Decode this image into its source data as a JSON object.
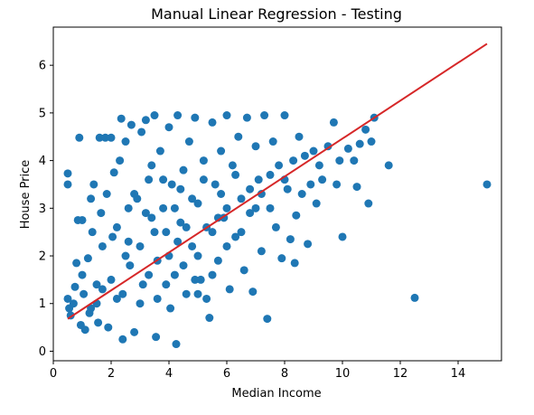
{
  "chart_data": {
    "type": "scatter",
    "title": "Manual Linear Regression - Testing",
    "xlabel": "Median Income",
    "ylabel": "House Price",
    "xlim": [
      0,
      15.5
    ],
    "ylim": [
      -0.2,
      6.8
    ],
    "xticks": [
      0,
      2,
      4,
      6,
      8,
      10,
      12,
      14
    ],
    "yticks": [
      0,
      1,
      2,
      3,
      4,
      5,
      6
    ],
    "grid": false,
    "series": [
      {
        "kind": "scatter",
        "color": "#1f77b4",
        "points": [
          [
            0.5,
            3.73
          ],
          [
            0.5,
            3.5
          ],
          [
            0.5,
            1.1
          ],
          [
            0.55,
            0.9
          ],
          [
            0.6,
            0.75
          ],
          [
            0.7,
            1.0
          ],
          [
            0.75,
            1.35
          ],
          [
            0.8,
            1.85
          ],
          [
            0.85,
            2.75
          ],
          [
            0.9,
            4.48
          ],
          [
            0.95,
            0.55
          ],
          [
            1.0,
            2.75
          ],
          [
            1.0,
            1.6
          ],
          [
            1.05,
            1.2
          ],
          [
            1.1,
            0.45
          ],
          [
            1.2,
            1.95
          ],
          [
            1.25,
            0.8
          ],
          [
            1.3,
            3.2
          ],
          [
            1.35,
            2.5
          ],
          [
            1.4,
            3.5
          ],
          [
            1.5,
            1.4
          ],
          [
            1.55,
            0.6
          ],
          [
            1.6,
            4.48
          ],
          [
            1.65,
            2.9
          ],
          [
            1.7,
            2.2
          ],
          [
            1.8,
            4.48
          ],
          [
            1.85,
            3.3
          ],
          [
            1.9,
            0.5
          ],
          [
            2.0,
            4.48
          ],
          [
            2.05,
            2.4
          ],
          [
            2.1,
            3.75
          ],
          [
            2.2,
            1.1
          ],
          [
            2.3,
            4.0
          ],
          [
            2.35,
            4.88
          ],
          [
            2.4,
            0.25
          ],
          [
            2.5,
            4.4
          ],
          [
            2.6,
            3.0
          ],
          [
            2.65,
            1.8
          ],
          [
            2.7,
            4.75
          ],
          [
            2.8,
            0.4
          ],
          [
            2.9,
            3.2
          ],
          [
            3.0,
            2.2
          ],
          [
            3.05,
            4.6
          ],
          [
            3.1,
            1.4
          ],
          [
            3.2,
            4.85
          ],
          [
            3.3,
            3.6
          ],
          [
            3.4,
            2.8
          ],
          [
            3.5,
            4.95
          ],
          [
            3.55,
            0.3
          ],
          [
            3.6,
            1.9
          ],
          [
            3.7,
            4.2
          ],
          [
            3.8,
            3.0
          ],
          [
            3.9,
            2.5
          ],
          [
            4.0,
            4.7
          ],
          [
            4.05,
            0.9
          ],
          [
            4.1,
            3.5
          ],
          [
            4.2,
            1.6
          ],
          [
            4.25,
            0.15
          ],
          [
            4.3,
            4.95
          ],
          [
            4.4,
            2.7
          ],
          [
            4.5,
            3.8
          ],
          [
            4.6,
            1.2
          ],
          [
            4.7,
            4.4
          ],
          [
            4.8,
            2.2
          ],
          [
            4.9,
            4.9
          ],
          [
            5.0,
            3.1
          ],
          [
            5.1,
            1.5
          ],
          [
            5.2,
            4.0
          ],
          [
            5.3,
            2.6
          ],
          [
            5.4,
            0.7
          ],
          [
            5.5,
            4.8
          ],
          [
            5.6,
            3.5
          ],
          [
            5.7,
            1.9
          ],
          [
            5.8,
            4.2
          ],
          [
            5.9,
            2.8
          ],
          [
            6.0,
            4.95
          ],
          [
            6.1,
            1.3
          ],
          [
            6.2,
            3.9
          ],
          [
            6.3,
            2.4
          ],
          [
            6.4,
            4.5
          ],
          [
            6.5,
            3.2
          ],
          [
            6.6,
            1.7
          ],
          [
            6.7,
            4.9
          ],
          [
            6.8,
            2.9
          ],
          [
            6.9,
            1.25
          ],
          [
            7.0,
            4.3
          ],
          [
            7.1,
            3.6
          ],
          [
            7.2,
            2.1
          ],
          [
            7.3,
            4.95
          ],
          [
            7.4,
            0.68
          ],
          [
            7.5,
            3.0
          ],
          [
            7.6,
            4.4
          ],
          [
            7.7,
            2.6
          ],
          [
            7.8,
            3.9
          ],
          [
            7.9,
            1.95
          ],
          [
            8.0,
            4.95
          ],
          [
            8.1,
            3.4
          ],
          [
            8.2,
            2.35
          ],
          [
            8.3,
            4.0
          ],
          [
            8.35,
            1.85
          ],
          [
            8.4,
            2.85
          ],
          [
            8.5,
            4.5
          ],
          [
            8.6,
            3.3
          ],
          [
            8.7,
            4.1
          ],
          [
            8.8,
            2.25
          ],
          [
            8.9,
            3.5
          ],
          [
            9.0,
            4.2
          ],
          [
            9.1,
            3.1
          ],
          [
            9.2,
            3.9
          ],
          [
            9.3,
            3.6
          ],
          [
            9.5,
            4.3
          ],
          [
            9.7,
            4.8
          ],
          [
            9.8,
            3.5
          ],
          [
            9.9,
            4.0
          ],
          [
            10.0,
            2.4
          ],
          [
            10.2,
            4.25
          ],
          [
            10.4,
            4.0
          ],
          [
            10.5,
            3.45
          ],
          [
            10.6,
            4.35
          ],
          [
            10.8,
            4.65
          ],
          [
            10.9,
            3.1
          ],
          [
            11.0,
            4.4
          ],
          [
            11.1,
            4.9
          ],
          [
            11.6,
            3.9
          ],
          [
            12.5,
            1.12
          ],
          [
            15.0,
            3.5
          ],
          [
            1.5,
            1.0
          ],
          [
            2.0,
            1.5
          ],
          [
            2.5,
            2.0
          ],
          [
            3.0,
            1.0
          ],
          [
            3.5,
            2.5
          ],
          [
            4.0,
            2.0
          ],
          [
            4.5,
            1.8
          ],
          [
            5.0,
            2.0
          ],
          [
            5.5,
            2.5
          ],
          [
            6.0,
            3.0
          ],
          [
            2.2,
            2.6
          ],
          [
            2.8,
            3.3
          ],
          [
            3.3,
            1.6
          ],
          [
            3.8,
            3.6
          ],
          [
            4.3,
            2.3
          ],
          [
            4.8,
            3.2
          ],
          [
            5.3,
            1.1
          ],
          [
            5.8,
            3.3
          ],
          [
            6.3,
            3.7
          ],
          [
            6.8,
            3.4
          ],
          [
            1.7,
            1.3
          ],
          [
            2.4,
            1.2
          ],
          [
            3.2,
            2.9
          ],
          [
            3.6,
            1.1
          ],
          [
            4.2,
            3.0
          ],
          [
            4.6,
            2.6
          ],
          [
            5.0,
            1.2
          ],
          [
            5.5,
            1.6
          ],
          [
            6.0,
            2.2
          ],
          [
            7.0,
            3.0
          ],
          [
            7.5,
            3.7
          ],
          [
            1.3,
            0.9
          ],
          [
            2.6,
            2.3
          ],
          [
            3.4,
            3.9
          ],
          [
            3.9,
            1.4
          ],
          [
            4.4,
            3.4
          ],
          [
            4.9,
            1.5
          ],
          [
            5.2,
            3.6
          ],
          [
            5.7,
            2.8
          ],
          [
            6.5,
            2.5
          ],
          [
            7.2,
            3.3
          ],
          [
            8.0,
            3.6
          ]
        ]
      },
      {
        "kind": "line",
        "color": "#d62728",
        "x": [
          0.5,
          15.0
        ],
        "y": [
          0.68,
          6.45
        ]
      }
    ]
  }
}
